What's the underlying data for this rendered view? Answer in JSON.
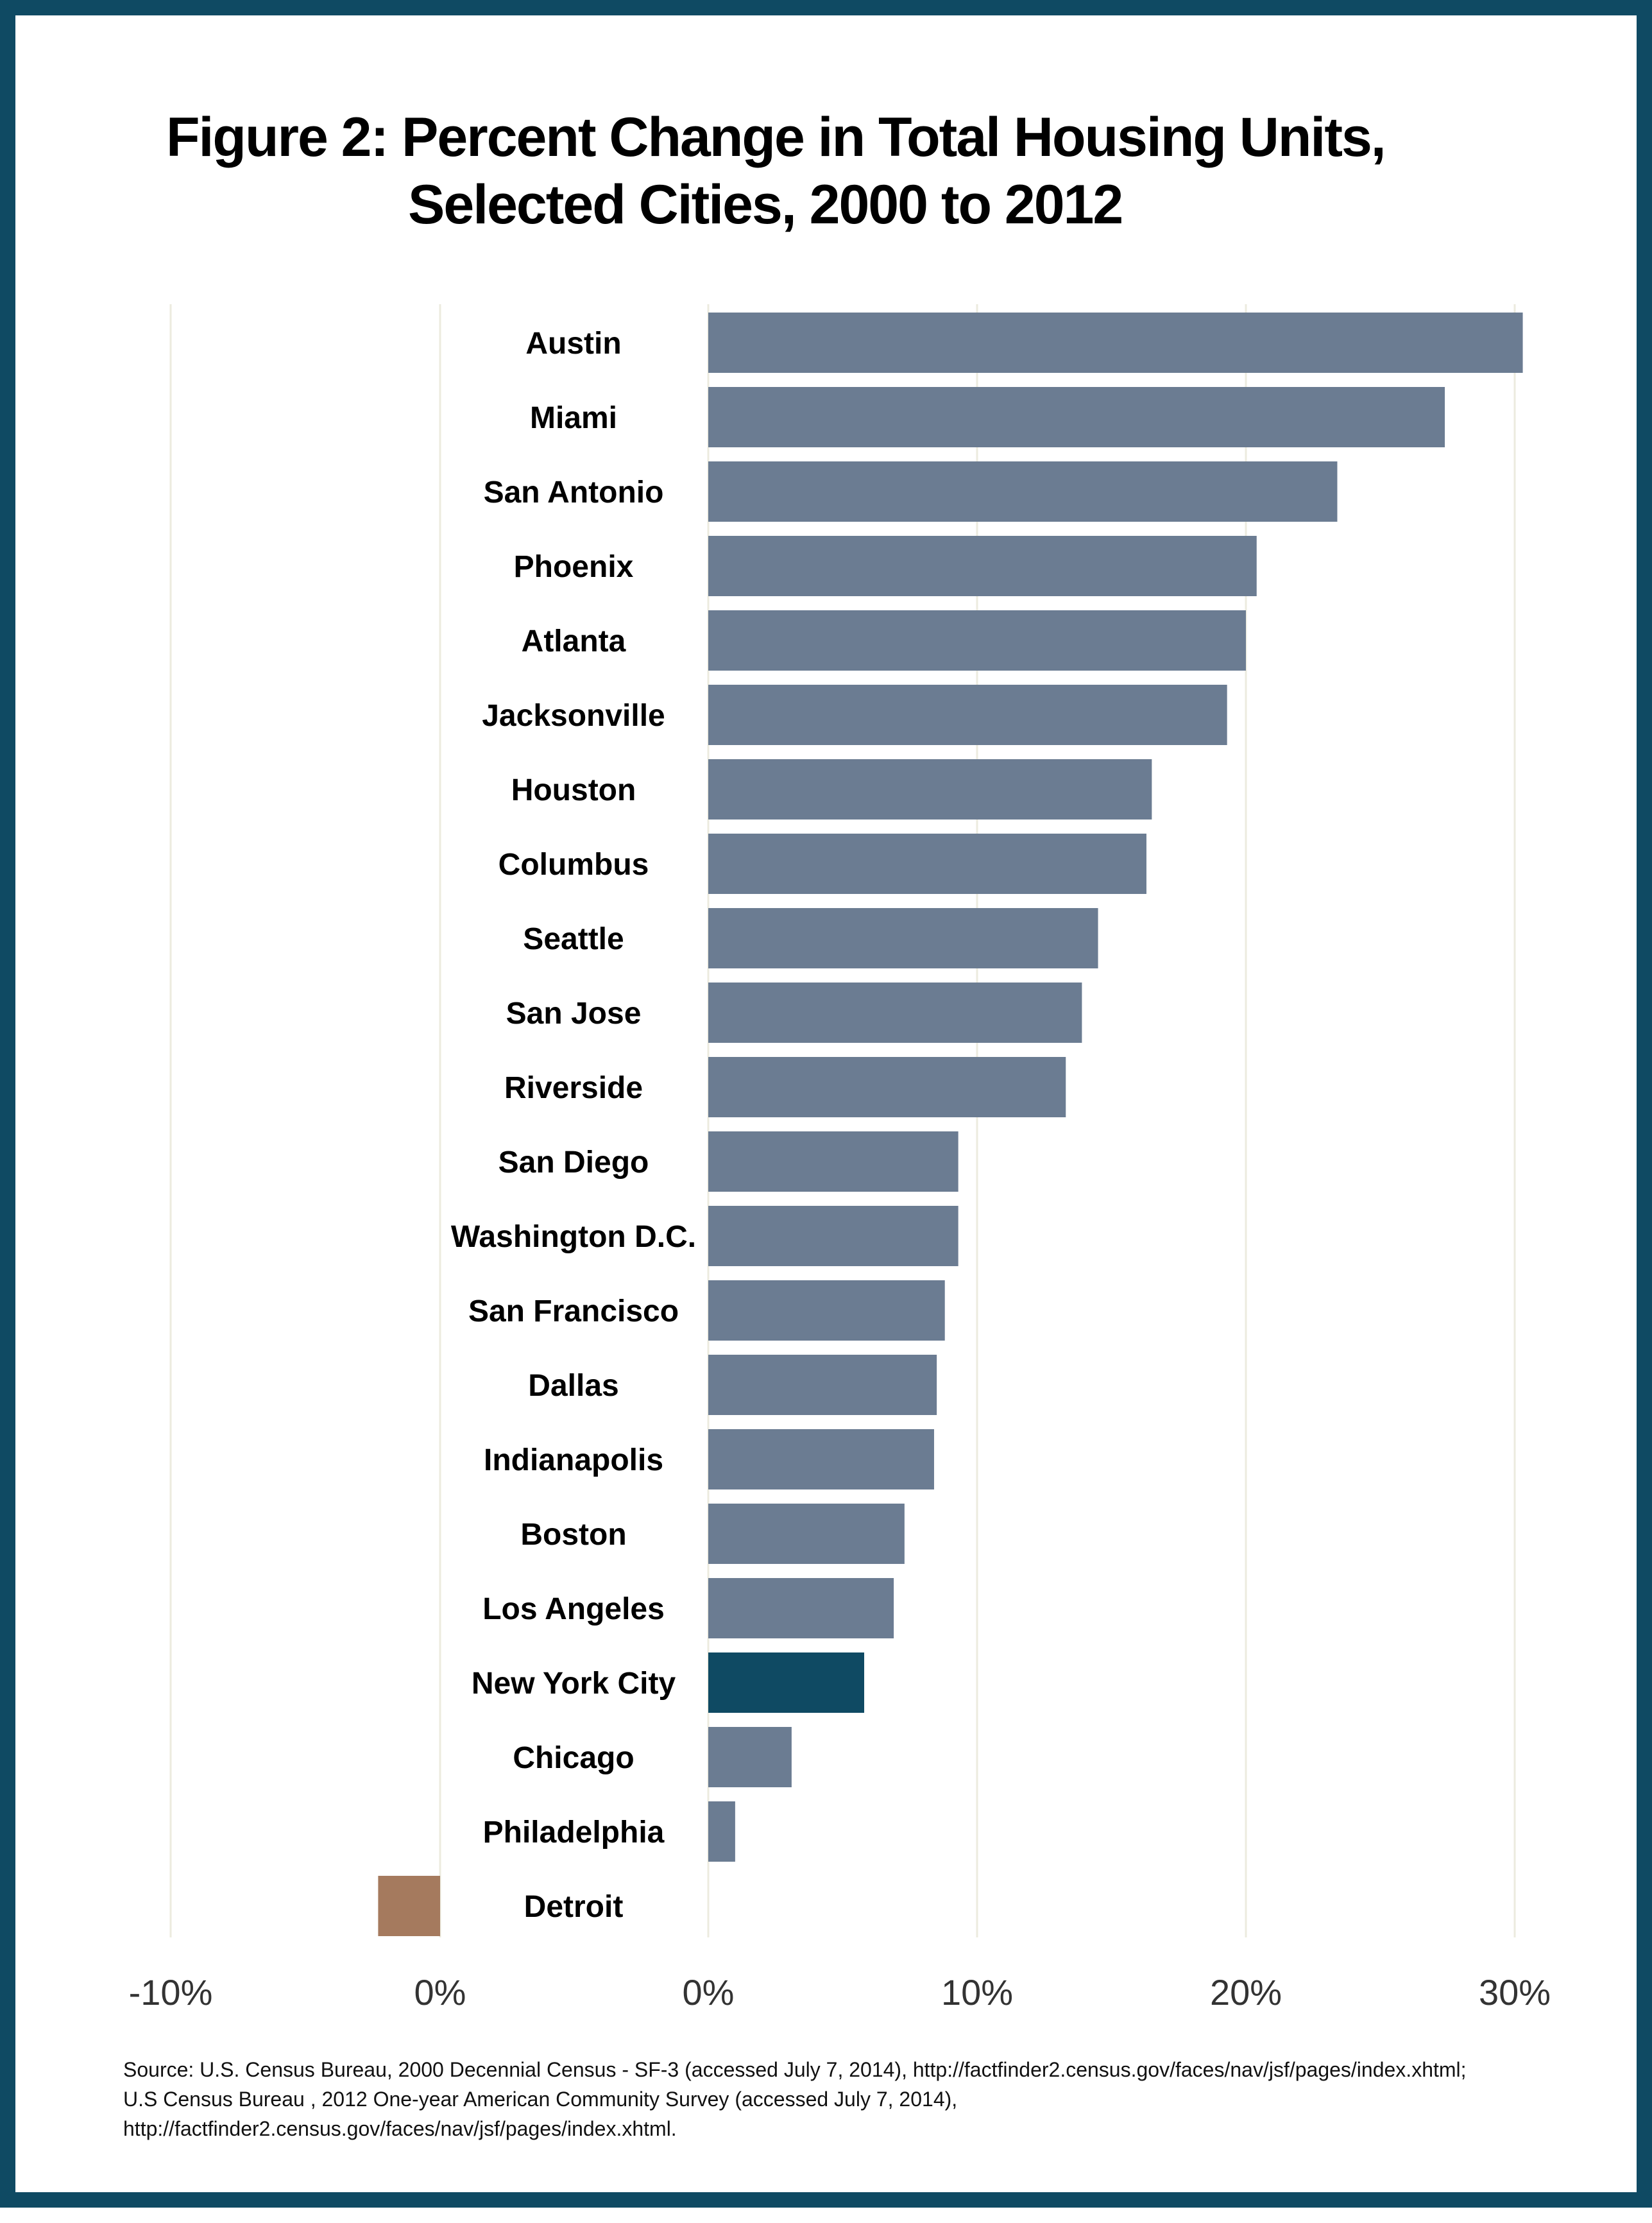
{
  "title_line1": "Figure 2: Percent Change in Total Housing Units,",
  "title_line2": "Selected Cities, 2000 to 2012",
  "colors": {
    "bar": "#6b7c92",
    "highlight": "#0f4a63",
    "negative": "#a57a5e",
    "gridline": "#ecebdf",
    "frame": "#0f4a63"
  },
  "chart_data": {
    "type": "bar",
    "orientation": "horizontal",
    "title": "Figure 2: Percent Change in Total Housing Units, Selected Cities, 2000 to 2012",
    "xlabel": "",
    "ylabel": "",
    "xlim": [
      -10,
      30
    ],
    "grid": true,
    "right_panel_ticks": [
      "0%",
      "10%",
      "20%",
      "30%"
    ],
    "left_panel_ticks": [
      "-10%",
      "0%"
    ],
    "categories": [
      "Austin",
      "Miami",
      "San Antonio",
      "Phoenix",
      "Atlanta",
      "Jacksonville",
      "Houston",
      "Columbus",
      "Seattle",
      "San Jose",
      "Riverside",
      "San Diego",
      "Washington D.C.",
      "San Francisco",
      "Dallas",
      "Indianapolis",
      "Boston",
      "Los Angeles",
      "New York City",
      "Chicago",
      "Philadelphia",
      "Detroit"
    ],
    "values": [
      30.3,
      27.4,
      23.4,
      20.4,
      20.0,
      19.3,
      16.5,
      16.3,
      14.5,
      13.9,
      13.3,
      9.3,
      9.3,
      8.8,
      8.5,
      8.4,
      7.3,
      6.9,
      5.8,
      3.1,
      1.0,
      -2.3
    ],
    "highlight": "New York City"
  },
  "source": {
    "line1": "Source: U.S. Census Bureau, 2000 Decennial Census - SF-3 (accessed July 7, 2014),  http://factfinder2.census.gov/faces/nav/jsf/pages/index.xhtml;",
    "line2": "U.S Census Bureau , 2012 One-year American Community Survey (accessed  July 7, 2014),",
    "line3": "http://factfinder2.census.gov/faces/nav/jsf/pages/index.xhtml."
  }
}
